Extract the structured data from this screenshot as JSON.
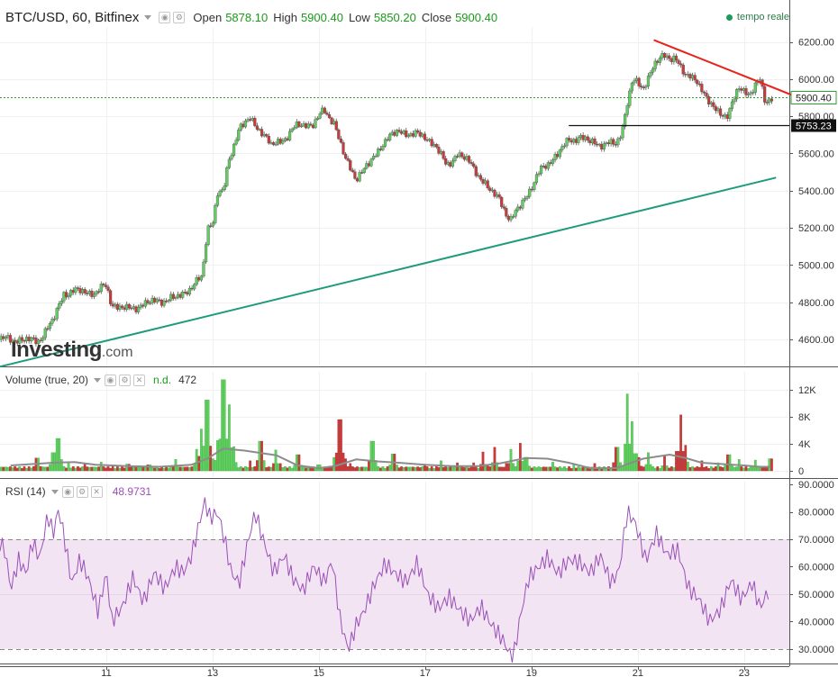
{
  "header": {
    "symbol": "BTC/USD, 60, Bitfinex",
    "open_label": "Open",
    "open_value": "5878.10",
    "high_label": "High",
    "high_value": "5900.40",
    "low_label": "Low",
    "low_value": "5850.20",
    "close_label": "Close",
    "close_value": "5900.40",
    "realtime": "tempo reale"
  },
  "watermark": {
    "brand": "Investing",
    "suffix": ".com"
  },
  "volume_panel": {
    "label": "Volume (true, 20)",
    "nd": "n.d.",
    "value": "472"
  },
  "rsi_panel": {
    "label": "RSI (14)",
    "value": "48.9731"
  },
  "colors": {
    "up": "#5fcf5f",
    "down": "#c93a3a",
    "trend_support": "#1e9b7c",
    "trend_resistance": "#e8231c",
    "rsi": "#9a50b8",
    "rsi_band": "#f2e4f2"
  },
  "chart_data": [
    {
      "type": "candlestick",
      "title": "BTC/USD, 60, Bitfinex",
      "x_ticks": [
        "11",
        "13",
        "15",
        "17",
        "19",
        "21",
        "23"
      ],
      "y_ticks": [
        "4600.00",
        "4800.00",
        "5000.00",
        "5200.00",
        "5400.00",
        "5600.00",
        "5800.00",
        "6000.00",
        "6200.00"
      ],
      "ylim": [
        4460,
        6280
      ],
      "last_price": "5900.40",
      "horizontal_level": "5753.23",
      "close_path": [
        [
          9.4,
          4600
        ],
        [
          9.7,
          4590
        ],
        [
          10.0,
          4700
        ],
        [
          10.2,
          4850
        ],
        [
          10.5,
          4860
        ],
        [
          10.8,
          4850
        ],
        [
          11.0,
          4890
        ],
        [
          11.1,
          4790
        ],
        [
          11.4,
          4760
        ],
        [
          11.7,
          4790
        ],
        [
          12.0,
          4810
        ],
        [
          12.3,
          4820
        ],
        [
          12.5,
          4860
        ],
        [
          12.8,
          4930
        ],
        [
          12.9,
          5200
        ],
        [
          13.0,
          5230
        ],
        [
          13.1,
          5400
        ],
        [
          13.2,
          5380
        ],
        [
          13.3,
          5560
        ],
        [
          13.5,
          5740
        ],
        [
          13.7,
          5780
        ],
        [
          13.9,
          5730
        ],
        [
          14.1,
          5640
        ],
        [
          14.3,
          5670
        ],
        [
          14.6,
          5750
        ],
        [
          14.9,
          5760
        ],
        [
          15.1,
          5830
        ],
        [
          15.3,
          5760
        ],
        [
          15.5,
          5560
        ],
        [
          15.7,
          5470
        ],
        [
          16.0,
          5560
        ],
        [
          16.2,
          5660
        ],
        [
          16.5,
          5720
        ],
        [
          16.8,
          5700
        ],
        [
          17.0,
          5690
        ],
        [
          17.2,
          5640
        ],
        [
          17.4,
          5530
        ],
        [
          17.6,
          5600
        ],
        [
          17.8,
          5560
        ],
        [
          18.0,
          5490
        ],
        [
          18.2,
          5400
        ],
        [
          18.4,
          5360
        ],
        [
          18.6,
          5230
        ],
        [
          18.8,
          5330
        ],
        [
          19.0,
          5420
        ],
        [
          19.2,
          5520
        ],
        [
          19.5,
          5600
        ],
        [
          19.7,
          5670
        ],
        [
          19.9,
          5690
        ],
        [
          20.1,
          5660
        ],
        [
          20.4,
          5650
        ],
        [
          20.6,
          5650
        ],
        [
          20.7,
          5720
        ],
        [
          20.8,
          5880
        ],
        [
          20.9,
          5990
        ],
        [
          21.1,
          5950
        ],
        [
          21.3,
          6080
        ],
        [
          21.5,
          6120
        ],
        [
          21.7,
          6120
        ],
        [
          21.9,
          6010
        ],
        [
          22.1,
          6010
        ],
        [
          22.3,
          5880
        ],
        [
          22.5,
          5830
        ],
        [
          22.7,
          5800
        ],
        [
          22.9,
          5960
        ],
        [
          23.1,
          5920
        ],
        [
          23.3,
          5990
        ],
        [
          23.4,
          5880
        ],
        [
          23.5,
          5900
        ]
      ]
    },
    {
      "type": "bar",
      "title": "Volume (true, 20)",
      "y_ticks": [
        "0",
        "4K",
        "8K",
        "12K"
      ],
      "ylim": [
        0,
        13000
      ],
      "last_value": "472",
      "spikes": [
        [
          9.7,
          1900
        ],
        [
          10.0,
          2700
        ],
        [
          10.1,
          4800
        ],
        [
          10.3,
          1200
        ],
        [
          10.6,
          1100
        ],
        [
          10.9,
          1300
        ],
        [
          11.4,
          1000
        ],
        [
          11.8,
          900
        ],
        [
          12.3,
          1700
        ],
        [
          12.7,
          3200
        ],
        [
          12.8,
          6200
        ],
        [
          12.9,
          10500
        ],
        [
          13.0,
          1800
        ],
        [
          13.1,
          4500
        ],
        [
          13.2,
          13500
        ],
        [
          13.3,
          9800
        ],
        [
          13.4,
          3600
        ],
        [
          13.7,
          1500
        ],
        [
          13.9,
          4400
        ],
        [
          14.2,
          3100
        ],
        [
          14.6,
          2400
        ],
        [
          15.0,
          900
        ],
        [
          15.3,
          2000
        ],
        [
          15.4,
          7600
        ],
        [
          15.5,
          1800
        ],
        [
          15.6,
          1100
        ],
        [
          16.0,
          4400
        ],
        [
          16.4,
          2500
        ],
        [
          17.0,
          1000
        ],
        [
          17.3,
          1500
        ],
        [
          17.6,
          1200
        ],
        [
          17.9,
          1200
        ],
        [
          18.1,
          2800
        ],
        [
          18.3,
          3500
        ],
        [
          18.6,
          3200
        ],
        [
          18.8,
          4100
        ],
        [
          18.9,
          2000
        ],
        [
          19.4,
          1300
        ],
        [
          19.8,
          900
        ],
        [
          20.2,
          1100
        ],
        [
          20.6,
          3500
        ],
        [
          20.8,
          11400
        ],
        [
          20.9,
          7300
        ],
        [
          21.0,
          2000
        ],
        [
          21.2,
          2700
        ],
        [
          21.5,
          2200
        ],
        [
          21.8,
          8300
        ],
        [
          21.9,
          3800
        ],
        [
          22.2,
          1500
        ],
        [
          22.5,
          1200
        ],
        [
          22.7,
          2400
        ],
        [
          22.9,
          1700
        ],
        [
          23.2,
          1600
        ],
        [
          23.5,
          1800
        ]
      ],
      "moving_average": [
        [
          9.2,
          800
        ],
        [
          9.6,
          1000
        ],
        [
          10.0,
          1200
        ],
        [
          10.4,
          1300
        ],
        [
          10.8,
          900
        ],
        [
          11.4,
          700
        ],
        [
          12.0,
          600
        ],
        [
          12.6,
          900
        ],
        [
          12.9,
          1800
        ],
        [
          13.2,
          3300
        ],
        [
          13.6,
          3000
        ],
        [
          14.2,
          2300
        ],
        [
          14.6,
          800
        ],
        [
          15.0,
          400
        ],
        [
          15.3,
          700
        ],
        [
          15.7,
          1700
        ],
        [
          16.1,
          1400
        ],
        [
          16.5,
          1200
        ],
        [
          17.0,
          900
        ],
        [
          17.5,
          700
        ],
        [
          18.0,
          700
        ],
        [
          18.4,
          1100
        ],
        [
          18.9,
          1900
        ],
        [
          19.3,
          1800
        ],
        [
          19.7,
          1200
        ],
        [
          20.1,
          400
        ],
        [
          20.6,
          400
        ],
        [
          20.8,
          1000
        ],
        [
          21.1,
          1800
        ],
        [
          21.6,
          2400
        ],
        [
          21.9,
          1900
        ],
        [
          22.2,
          1200
        ],
        [
          22.6,
          1000
        ],
        [
          23.0,
          800
        ],
        [
          23.3,
          600
        ],
        [
          23.5,
          600
        ]
      ]
    },
    {
      "type": "line",
      "title": "RSI (14)",
      "y_ticks": [
        "30.0000",
        "40.0000",
        "50.0000",
        "60.0000",
        "70.0000",
        "80.0000",
        "90.0000"
      ],
      "ylim": [
        25,
        91
      ],
      "band": [
        30,
        70
      ],
      "last_value": "48.9731",
      "series": [
        {
          "values": [
            [
              9.0,
              69
            ],
            [
              9.1,
              66
            ],
            [
              9.2,
              52
            ],
            [
              9.35,
              63
            ],
            [
              9.5,
              58
            ],
            [
              9.6,
              70
            ],
            [
              9.75,
              64
            ],
            [
              9.9,
              80
            ],
            [
              10.0,
              73
            ],
            [
              10.1,
              82
            ],
            [
              10.2,
              73
            ],
            [
              10.35,
              55
            ],
            [
              10.5,
              64
            ],
            [
              10.65,
              58
            ],
            [
              10.85,
              45
            ],
            [
              11.0,
              60
            ],
            [
              11.1,
              42
            ],
            [
              11.3,
              47
            ],
            [
              11.5,
              58
            ],
            [
              11.7,
              49
            ],
            [
              11.9,
              60
            ],
            [
              12.1,
              54
            ],
            [
              12.3,
              62
            ],
            [
              12.45,
              60
            ],
            [
              12.6,
              66
            ],
            [
              12.75,
              78
            ],
            [
              12.85,
              86
            ],
            [
              12.95,
              80
            ],
            [
              13.1,
              82
            ],
            [
              13.25,
              70
            ],
            [
              13.35,
              60
            ],
            [
              13.5,
              56
            ],
            [
              13.65,
              70
            ],
            [
              13.8,
              82
            ],
            [
              13.95,
              72
            ],
            [
              14.15,
              60
            ],
            [
              14.35,
              66
            ],
            [
              14.5,
              58
            ],
            [
              14.7,
              53
            ],
            [
              14.9,
              62
            ],
            [
              15.1,
              56
            ],
            [
              15.25,
              64
            ],
            [
              15.4,
              42
            ],
            [
              15.55,
              31
            ],
            [
              15.7,
              40
            ],
            [
              15.85,
              45
            ],
            [
              16.05,
              55
            ],
            [
              16.25,
              62
            ],
            [
              16.45,
              58
            ],
            [
              16.65,
              55
            ],
            [
              16.85,
              62
            ],
            [
              17.05,
              50
            ],
            [
              17.25,
              45
            ],
            [
              17.45,
              49
            ],
            [
              17.65,
              44
            ],
            [
              17.85,
              40
            ],
            [
              18.05,
              45
            ],
            [
              18.25,
              38
            ],
            [
              18.45,
              33
            ],
            [
              18.65,
              25
            ],
            [
              18.8,
              42
            ],
            [
              18.95,
              55
            ],
            [
              19.1,
              58
            ],
            [
              19.3,
              62
            ],
            [
              19.5,
              56
            ],
            [
              19.7,
              61
            ],
            [
              19.9,
              60
            ],
            [
              20.1,
              56
            ],
            [
              20.3,
              62
            ],
            [
              20.5,
              52
            ],
            [
              20.65,
              57
            ],
            [
              20.8,
              78
            ],
            [
              20.95,
              74
            ],
            [
              21.15,
              60
            ],
            [
              21.35,
              70
            ],
            [
              21.55,
              62
            ],
            [
              21.75,
              64
            ],
            [
              21.95,
              50
            ],
            [
              22.15,
              46
            ],
            [
              22.35,
              38
            ],
            [
              22.55,
              42
            ],
            [
              22.75,
              53
            ],
            [
              22.95,
              46
            ],
            [
              23.15,
              52
            ],
            [
              23.3,
              43
            ],
            [
              23.45,
              49
            ]
          ]
        }
      ]
    }
  ],
  "annotations": {
    "support_line": [
      [
        8.8,
        4440
      ],
      [
        23.6,
        5470
      ]
    ],
    "resistance_line": [
      [
        21.3,
        6210
      ],
      [
        24.2,
        5880
      ]
    ]
  }
}
